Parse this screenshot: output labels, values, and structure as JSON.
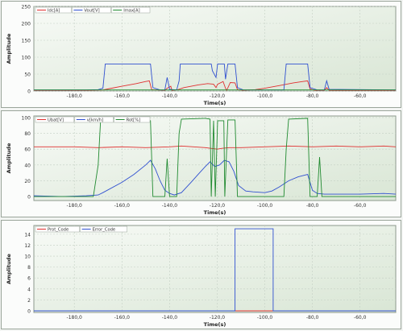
{
  "chart_data": [
    {
      "type": "line",
      "title": "",
      "xlabel": "Time(s)",
      "ylabel": "Amplitude",
      "xlim": [
        -197,
        -45
      ],
      "ylim": [
        0,
        250
      ],
      "xticks": [
        -180,
        -160,
        -140,
        -120,
        -100,
        -80,
        -60
      ],
      "xtick_labels": [
        "-180,0",
        "-160,0",
        "-140,0",
        "-120,0",
        "-100,0",
        "-80,0",
        "-60,0"
      ],
      "yticks": [
        0,
        50,
        100,
        150,
        200,
        250
      ],
      "ytick_labels": [
        "0",
        "50",
        "100",
        "150",
        "200",
        "250"
      ],
      "legend_position": "top-left",
      "grid": true,
      "series": [
        {
          "name": "Idc[A]",
          "color": "#e03030",
          "points": [
            [
              -197,
              2
            ],
            [
              -175,
              2
            ],
            [
              -168,
              3
            ],
            [
              -166,
              6
            ],
            [
              -160,
              14
            ],
            [
              -154,
              22
            ],
            [
              -150,
              28
            ],
            [
              -148.5,
              30
            ],
            [
              -147.5,
              4
            ],
            [
              -142,
              2
            ],
            [
              -141,
              8
            ],
            [
              -139.5,
              14
            ],
            [
              -139,
              2
            ],
            [
              -136.5,
              4
            ],
            [
              -134,
              10
            ],
            [
              -128,
              18
            ],
            [
              -124,
              22
            ],
            [
              -121.5,
              20
            ],
            [
              -120.5,
              10
            ],
            [
              -119.8,
              20
            ],
            [
              -117.5,
              28
            ],
            [
              -116.5,
              8
            ],
            [
              -116,
              2
            ],
            [
              -114.5,
              25
            ],
            [
              -112.5,
              24
            ],
            [
              -111.5,
              4
            ],
            [
              -109,
              2
            ],
            [
              -104,
              4
            ],
            [
              -100,
              8
            ],
            [
              -94,
              16
            ],
            [
              -88,
              24
            ],
            [
              -84,
              28
            ],
            [
              -82,
              30
            ],
            [
              -81,
              6
            ],
            [
              -79,
              2
            ],
            [
              -75,
              2
            ],
            [
              -74,
              10
            ],
            [
              -73,
              2
            ],
            [
              -45,
              2
            ]
          ]
        },
        {
          "name": "Vout[V]",
          "color": "#3050d0",
          "points": [
            [
              -197,
              3
            ],
            [
              -175,
              3
            ],
            [
              -170,
              4
            ],
            [
              -168,
              8
            ],
            [
              -167,
              80
            ],
            [
              -148,
              80
            ],
            [
              -147,
              10
            ],
            [
              -144,
              3
            ],
            [
              -142,
              3
            ],
            [
              -141,
              40
            ],
            [
              -140,
              5
            ],
            [
              -137,
              3
            ],
            [
              -136,
              30
            ],
            [
              -135.5,
              80
            ],
            [
              -122.5,
              80
            ],
            [
              -122,
              60
            ],
            [
              -120.5,
              40
            ],
            [
              -119.8,
              80
            ],
            [
              -117,
              80
            ],
            [
              -116.5,
              35
            ],
            [
              -115.5,
              80
            ],
            [
              -112.5,
              80
            ],
            [
              -111.5,
              10
            ],
            [
              -109,
              3
            ],
            [
              -92,
              3
            ],
            [
              -91,
              80
            ],
            [
              -82,
              80
            ],
            [
              -81,
              10
            ],
            [
              -78,
              3
            ],
            [
              -75,
              3
            ],
            [
              -74,
              30
            ],
            [
              -73,
              5
            ],
            [
              -45,
              3
            ]
          ]
        },
        {
          "name": "Imax[A]",
          "color": "#208a30",
          "points": [
            [
              -197,
              3
            ],
            [
              -45,
              3
            ]
          ]
        }
      ]
    },
    {
      "type": "line",
      "title": "",
      "xlabel": "Time(s)",
      "ylabel": "Amplitude",
      "xlim": [
        -197,
        -45
      ],
      "ylim": [
        -5,
        102
      ],
      "xticks": [
        -180,
        -160,
        -140,
        -120,
        -100,
        -80,
        -60
      ],
      "xtick_labels": [
        "-180,0",
        "-160,0",
        "-140,0",
        "-120,0",
        "-100,0",
        "-80,0",
        "-60,0"
      ],
      "yticks": [
        0,
        20,
        40,
        60,
        80,
        100
      ],
      "ytick_labels": [
        "0",
        "20",
        "40",
        "60",
        "80",
        "100"
      ],
      "legend_position": "top-left",
      "grid": true,
      "series": [
        {
          "name": "Ubat[V]",
          "color": "#e03030",
          "points": [
            [
              -197,
              63
            ],
            [
              -190,
              63
            ],
            [
              -180,
              63
            ],
            [
              -170,
              62
            ],
            [
              -160,
              63
            ],
            [
              -150,
              62
            ],
            [
              -140,
              63
            ],
            [
              -135,
              64
            ],
            [
              -130,
              63
            ],
            [
              -125,
              62
            ],
            [
              -120,
              60
            ],
            [
              -118,
              61
            ],
            [
              -115,
              62
            ],
            [
              -110,
              62
            ],
            [
              -100,
              63
            ],
            [
              -90,
              64
            ],
            [
              -80,
              63
            ],
            [
              -70,
              64
            ],
            [
              -60,
              63
            ],
            [
              -50,
              64
            ],
            [
              -45,
              63
            ]
          ]
        },
        {
          "name": "v[km/h]",
          "color": "#3050d0",
          "points": [
            [
              -197,
              1
            ],
            [
              -185,
              0
            ],
            [
              -175,
              1
            ],
            [
              -170,
              2
            ],
            [
              -168,
              5
            ],
            [
              -160,
              18
            ],
            [
              -155,
              28
            ],
            [
              -150,
              40
            ],
            [
              -148,
              46
            ],
            [
              -146,
              35
            ],
            [
              -144,
              20
            ],
            [
              -142,
              8
            ],
            [
              -140,
              4
            ],
            [
              -138,
              2
            ],
            [
              -135,
              5
            ],
            [
              -131,
              18
            ],
            [
              -128,
              28
            ],
            [
              -125,
              38
            ],
            [
              -123,
              44
            ],
            [
              -121,
              38
            ],
            [
              -119,
              40
            ],
            [
              -117,
              46
            ],
            [
              -115,
              44
            ],
            [
              -113,
              32
            ],
            [
              -111,
              14
            ],
            [
              -108,
              7
            ],
            [
              -105,
              6
            ],
            [
              -100,
              5
            ],
            [
              -97,
              7
            ],
            [
              -94,
              12
            ],
            [
              -90,
              20
            ],
            [
              -86,
              25
            ],
            [
              -82,
              28
            ],
            [
              -80,
              8
            ],
            [
              -78,
              4
            ],
            [
              -75,
              3
            ],
            [
              -70,
              3
            ],
            [
              -60,
              3
            ],
            [
              -50,
              4
            ],
            [
              -45,
              3
            ]
          ]
        },
        {
          "name": "Rot[%]",
          "color": "#208a30",
          "points": [
            [
              -197,
              0
            ],
            [
              -172,
              0
            ],
            [
              -170,
              40
            ],
            [
              -169,
              95
            ],
            [
              -168,
              100
            ],
            [
              -158,
              98
            ],
            [
              -150,
              98
            ],
            [
              -148,
              96
            ],
            [
              -147,
              0
            ],
            [
              -142,
              0
            ],
            [
              -141,
              48
            ],
            [
              -140,
              0
            ],
            [
              -137,
              0
            ],
            [
              -136,
              80
            ],
            [
              -135,
              98
            ],
            [
              -125,
              99
            ],
            [
              -123,
              98
            ],
            [
              -122.5,
              0
            ],
            [
              -121.5,
              96
            ],
            [
              -120.8,
              0
            ],
            [
              -119.8,
              96
            ],
            [
              -117.2,
              96
            ],
            [
              -116.8,
              0
            ],
            [
              -115.5,
              97
            ],
            [
              -112.5,
              97
            ],
            [
              -111.5,
              0
            ],
            [
              -92,
              0
            ],
            [
              -91,
              60
            ],
            [
              -90,
              98
            ],
            [
              -82,
              99
            ],
            [
              -81,
              0
            ],
            [
              -78,
              0
            ],
            [
              -77,
              50
            ],
            [
              -76,
              0
            ],
            [
              -45,
              0
            ]
          ]
        }
      ]
    },
    {
      "type": "line",
      "title": "",
      "xlabel": "Time(s)",
      "ylabel": "Amplitude",
      "xlim": [
        -197,
        -45
      ],
      "ylim": [
        -0.3,
        15.6
      ],
      "xticks": [
        -180,
        -160,
        -140,
        -120,
        -100,
        -80,
        -60
      ],
      "xtick_labels": [
        "-180,0",
        "-160,0",
        "-140,0",
        "-120,0",
        "-100,0",
        "-80,0",
        "-60,0"
      ],
      "yticks": [
        0,
        2,
        4,
        6,
        8,
        10,
        12,
        14
      ],
      "ytick_labels": [
        "0",
        "2",
        "4",
        "6",
        "8",
        "10",
        "12",
        "14"
      ],
      "legend_position": "top-left",
      "grid": true,
      "series": [
        {
          "name": "Prot_Code",
          "color": "#e03030",
          "points": [
            [
              -197,
              0
            ],
            [
              -45,
              0
            ]
          ]
        },
        {
          "name": "Error_Code",
          "color": "#3050d0",
          "points": [
            [
              -197,
              0
            ],
            [
              -112.5,
              0
            ],
            [
              -112.5,
              15
            ],
            [
              -96.5,
              15
            ],
            [
              -96.5,
              0
            ],
            [
              -45,
              0
            ]
          ]
        }
      ]
    }
  ]
}
